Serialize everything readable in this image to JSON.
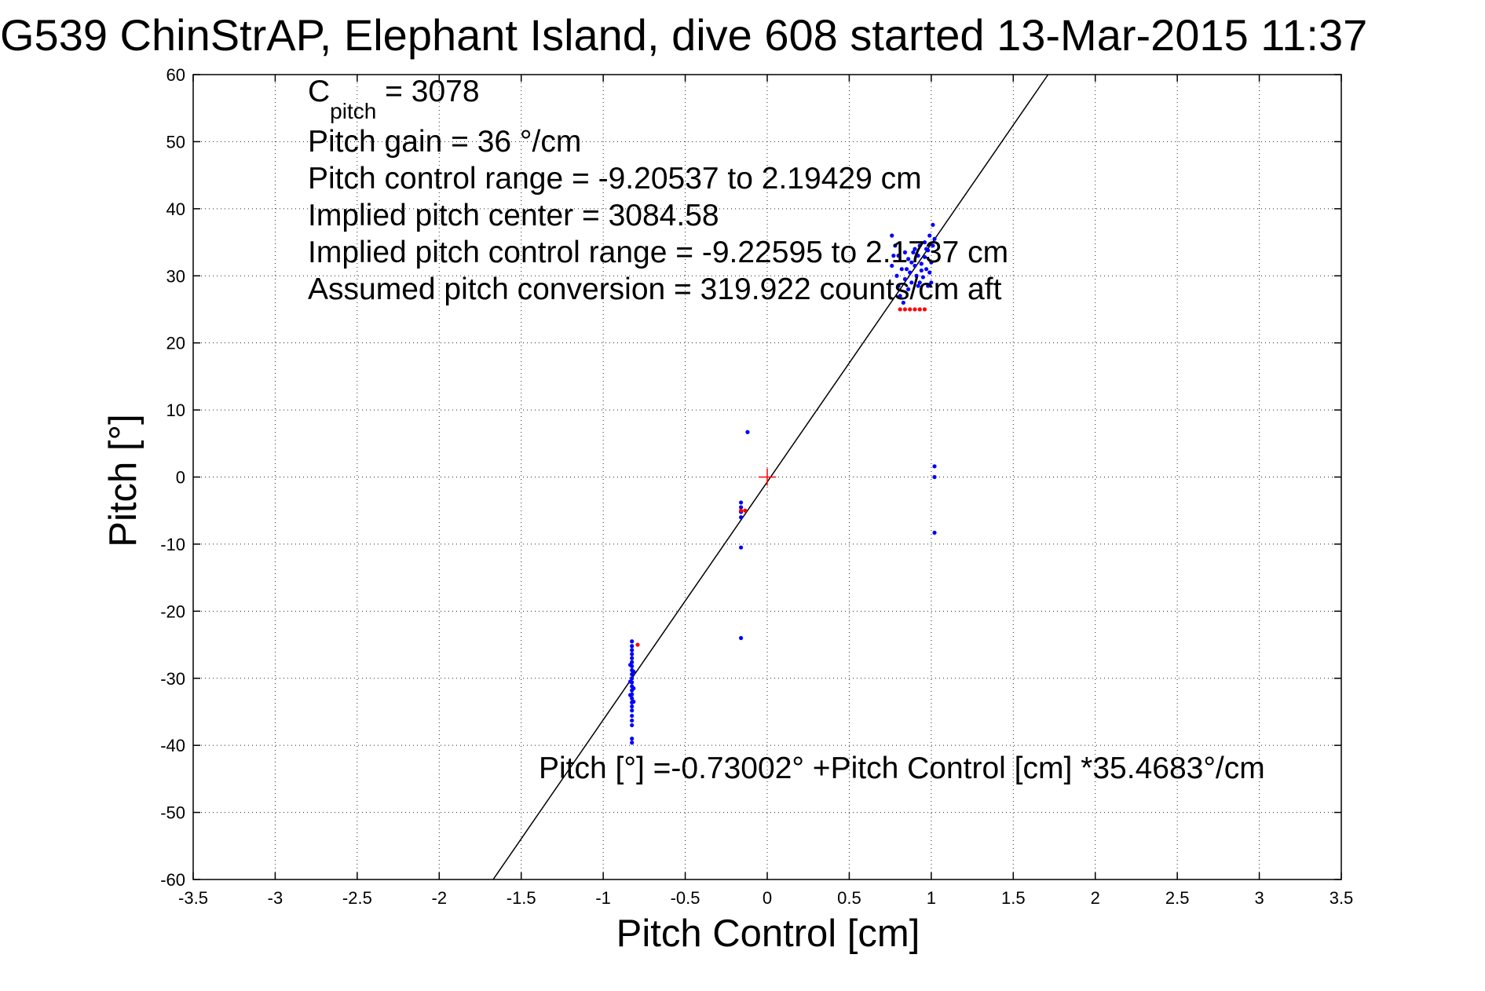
{
  "chart_data": {
    "type": "scatter",
    "title": "G539 ChinStrAP, Elephant Island, dive 608 started 13-Mar-2015 11:37",
    "xlabel": "Pitch Control [cm]",
    "ylabel": "Pitch [°]",
    "xlim": [
      -3.5,
      3.5
    ],
    "ylim": [
      -60,
      60
    ],
    "x_ticks": [
      -3.5,
      -3,
      -2.5,
      -2,
      -1.5,
      -1,
      -0.5,
      0,
      0.5,
      1,
      1.5,
      2,
      2.5,
      3,
      3.5
    ],
    "x_tick_labels": [
      "-3.5",
      "-3",
      "-2.5",
      "-2",
      "-1.5",
      "-1",
      "-0.5",
      "0",
      "0.5",
      "1",
      "1.5",
      "2",
      "2.5",
      "3",
      "3.5"
    ],
    "y_ticks": [
      -60,
      -50,
      -40,
      -30,
      -20,
      -10,
      0,
      10,
      20,
      30,
      40,
      50,
      60
    ],
    "y_tick_labels": [
      "-60",
      "-50",
      "-40",
      "-30",
      "-20",
      "-10",
      "0",
      "10",
      "20",
      "30",
      "40",
      "50",
      "60"
    ],
    "grid": true,
    "annotations": {
      "cpitch_main": "C",
      "cpitch_sub": "pitch",
      "cpitch_value": " = 3078",
      "line2": "Pitch gain = 36 °/cm",
      "line3": "Pitch control range = -9.20537 to 2.19429 cm",
      "line4": "Implied pitch center = 3084.58",
      "line5": "Implied pitch control range = -9.22595 to 2.1737 cm",
      "line6": "Assumed pitch conversion = 319.922 counts/cm aft",
      "equation": "Pitch [°] =-0.73002° +Pitch Control [cm] *35.4683°/cm"
    },
    "fit": {
      "intercept": -0.73002,
      "slope": 35.4683
    },
    "center_marker": {
      "x": 0,
      "y": 0,
      "color": "#ff0000"
    },
    "series": [
      {
        "color": "#0000ff",
        "points": [
          [
            -0.825,
            -24.5
          ],
          [
            -0.825,
            -25.2
          ],
          [
            -0.825,
            -25.8
          ],
          [
            -0.825,
            -26.4
          ],
          [
            -0.825,
            -27.0
          ],
          [
            -0.825,
            -27.6
          ],
          [
            -0.825,
            -28.2
          ],
          [
            -0.825,
            -28.8
          ],
          [
            -0.825,
            -29.4
          ],
          [
            -0.825,
            -30.0
          ],
          [
            -0.825,
            -30.6
          ],
          [
            -0.825,
            -31.2
          ],
          [
            -0.825,
            -31.8
          ],
          [
            -0.825,
            -32.4
          ],
          [
            -0.825,
            -33.0
          ],
          [
            -0.825,
            -33.6
          ],
          [
            -0.825,
            -34.2
          ],
          [
            -0.825,
            -34.8
          ],
          [
            -0.825,
            -35.6
          ],
          [
            -0.825,
            -36.3
          ],
          [
            -0.825,
            -37.0
          ],
          [
            -0.825,
            -39.0
          ],
          [
            -0.825,
            -39.6
          ],
          [
            -0.835,
            -28.0
          ],
          [
            -0.835,
            -30.5
          ],
          [
            -0.835,
            -32.5
          ],
          [
            -0.815,
            -29.0
          ],
          [
            -0.815,
            -31.5
          ],
          [
            -0.815,
            -33.5
          ],
          [
            -0.12,
            6.7
          ],
          [
            -0.16,
            -3.8
          ],
          [
            -0.16,
            -4.5
          ],
          [
            -0.16,
            -5.2
          ],
          [
            -0.16,
            -6.0
          ],
          [
            -0.16,
            -10.5
          ],
          [
            -0.16,
            -24.0
          ],
          [
            1.02,
            1.6
          ],
          [
            1.02,
            0.0
          ],
          [
            1.02,
            -8.3
          ],
          [
            0.76,
            36.0
          ],
          [
            0.78,
            34.5
          ],
          [
            0.77,
            33.0
          ],
          [
            0.76,
            31.5
          ],
          [
            0.79,
            30.0
          ],
          [
            0.8,
            28.5
          ],
          [
            0.81,
            27.0
          ],
          [
            0.83,
            26.0
          ],
          [
            0.84,
            29.5
          ],
          [
            0.85,
            31.0
          ],
          [
            0.86,
            32.5
          ],
          [
            0.87,
            30.5
          ],
          [
            0.88,
            29.0
          ],
          [
            0.89,
            33.5
          ],
          [
            0.9,
            31.5
          ],
          [
            0.91,
            30.0
          ],
          [
            0.92,
            33.0
          ],
          [
            0.93,
            34.5
          ],
          [
            0.94,
            31.8
          ],
          [
            0.95,
            29.8
          ],
          [
            0.96,
            32.8
          ],
          [
            0.97,
            31.0
          ],
          [
            0.98,
            33.8
          ],
          [
            0.99,
            30.5
          ],
          [
            1.0,
            32.0
          ],
          [
            1.01,
            34.5
          ],
          [
            1.02,
            35.5
          ],
          [
            1.01,
            37.6
          ],
          [
            1.0,
            29.0
          ],
          [
            0.99,
            36.0
          ],
          [
            0.88,
            32.0
          ],
          [
            0.9,
            34.0
          ],
          [
            0.92,
            28.5
          ],
          [
            0.94,
            30.8
          ],
          [
            0.96,
            35.0
          ],
          [
            0.98,
            28.5
          ],
          [
            0.84,
            33.5
          ],
          [
            0.86,
            28.0
          ],
          [
            0.82,
            31.0
          ],
          [
            0.8,
            33.0
          ],
          [
            0.93,
            29.0
          ],
          [
            0.97,
            34.0
          ]
        ]
      },
      {
        "color": "#ff0000",
        "points": [
          [
            -0.79,
            -25.0
          ],
          [
            -0.16,
            -5.0
          ],
          [
            -0.135,
            -5.0
          ],
          [
            0.81,
            25.0
          ],
          [
            0.84,
            25.0
          ],
          [
            0.87,
            25.0
          ],
          [
            0.9,
            25.0
          ],
          [
            0.93,
            25.0
          ],
          [
            0.96,
            25.0
          ]
        ]
      }
    ]
  }
}
